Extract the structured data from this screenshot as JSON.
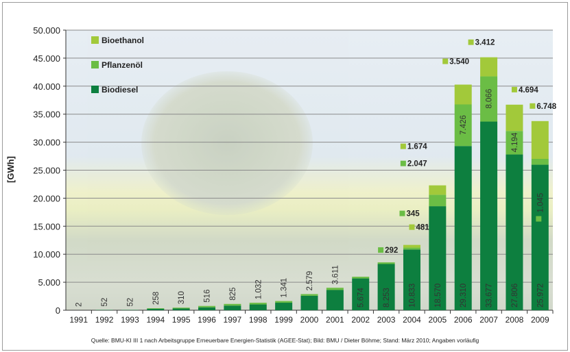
{
  "chart_data": {
    "type": "bar",
    "stacked": true,
    "title": "",
    "xlabel": "",
    "ylabel": "[GWh]",
    "ylim": [
      0,
      50000
    ],
    "yticks": [
      "0",
      "5.000",
      "10.000",
      "15.000",
      "20.000",
      "25.000",
      "30.000",
      "35.000",
      "40.000",
      "45.000",
      "50.000"
    ],
    "ytick_values": [
      0,
      5000,
      10000,
      15000,
      20000,
      25000,
      30000,
      35000,
      40000,
      45000,
      50000
    ],
    "grid": true,
    "legend_position": "top-left",
    "categories": [
      "1991",
      "1992",
      "1993",
      "1994",
      "1995",
      "1996",
      "1997",
      "1998",
      "1999",
      "2000",
      "2001",
      "2002",
      "2003",
      "2004",
      "2005",
      "2006",
      "2007",
      "2008",
      "2009"
    ],
    "series": [
      {
        "name": "Biodiesel",
        "color": "#0d7f3f",
        "values": [
          2,
          52,
          52,
          258,
          310,
          516,
          825,
          1032,
          1341,
          2579,
          3611,
          5674,
          8253,
          10833,
          18570,
          29310,
          33677,
          27806,
          25972
        ],
        "labels": [
          "2",
          "52",
          "52",
          "258",
          "310",
          "516",
          "825",
          "1.032",
          "1.341",
          "2.579",
          "3.611",
          "5.674",
          "8.253",
          "10.833",
          "18.570",
          "29.310",
          "33.677",
          "27.806",
          "25.972"
        ]
      },
      {
        "name": "Pflanzenöl",
        "color": "#6bbd45",
        "values": [
          0,
          0,
          0,
          100,
          150,
          250,
          300,
          300,
          300,
          300,
          400,
          300,
          292,
          345,
          2047,
          7426,
          8066,
          4194,
          1045
        ],
        "labels": [
          "",
          "",
          "",
          "",
          "",
          "",
          "",
          "",
          "",
          "",
          "",
          "",
          "292",
          "345",
          "2.047",
          "7.426",
          "8.066",
          "4.194",
          "1.045"
        ]
      },
      {
        "name": "Bioethanol",
        "color": "#a2c93a",
        "values": [
          0,
          0,
          0,
          0,
          0,
          0,
          0,
          0,
          0,
          0,
          0,
          0,
          0,
          481,
          1674,
          3540,
          3412,
          4694,
          6748
        ],
        "labels": [
          "",
          "",
          "",
          "",
          "",
          "",
          "",
          "",
          "",
          "",
          "",
          "",
          "",
          "481",
          "1.674",
          "3.540",
          "3.412",
          "4.694",
          "6.748"
        ]
      }
    ],
    "legend": [
      "Bioethanol",
      "Pflanzenöl",
      "Biodiesel"
    ]
  },
  "footer": "Quelle: BMU-KI III 1 nach Arbeitsgruppe Erneuerbare Energien-Statistik (AGEE-Stat); Bild: BMU / Dieter Böhme; Stand: März 2010; Angaben vorläufig"
}
